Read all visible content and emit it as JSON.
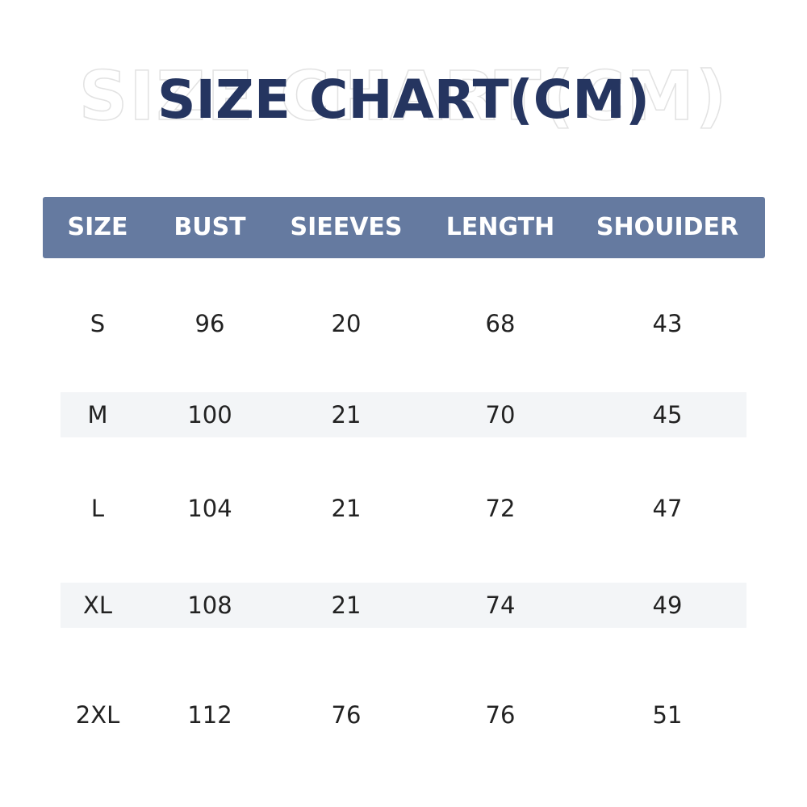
{
  "header": {
    "title": "SIZE CHART(CM)"
  },
  "table": {
    "columns": [
      "SIZE",
      "BUST",
      "SIEEVES",
      "LENGTH",
      "SHOUIDER"
    ],
    "rows": [
      [
        "S",
        96,
        20,
        68,
        43
      ],
      [
        "M",
        100,
        21,
        70,
        45
      ],
      [
        "L",
        104,
        21,
        72,
        47
      ],
      [
        "XL",
        108,
        21,
        74,
        49
      ],
      [
        "2XL",
        112,
        76,
        76,
        51
      ]
    ]
  }
}
